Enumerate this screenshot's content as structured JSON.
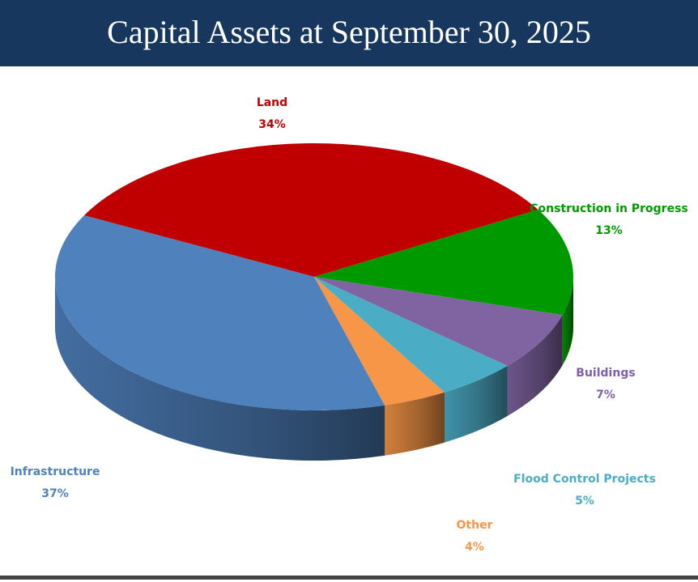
{
  "chart_data": {
    "type": "pie",
    "title": "Capital Assets at September 30, 2025",
    "categories": [
      "Land",
      "Construction in Progress",
      "Buildings",
      "Flood Control Projects",
      "Other",
      "Infrastructure"
    ],
    "values": [
      34,
      13,
      7,
      5,
      4,
      37
    ],
    "value_labels": [
      "34%",
      "13%",
      "7%",
      "5%",
      "4%",
      "37%"
    ],
    "colors": [
      "#c00000",
      "#009a00",
      "#8064a2",
      "#4bacc6",
      "#f79646",
      "#4f81bd"
    ]
  }
}
